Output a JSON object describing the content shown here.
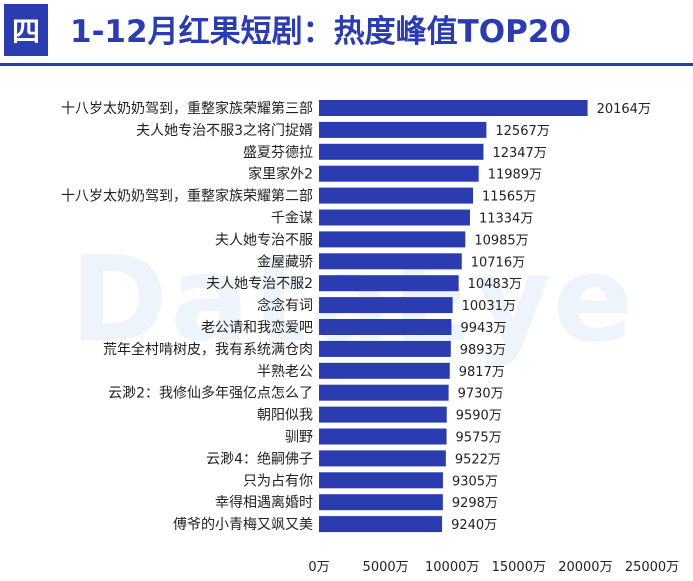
{
  "header": {
    "badge": "四",
    "title": "1-12月红果短剧：热度峰值TOP20"
  },
  "watermark": "DataEye",
  "colors": {
    "bar": "#2b3bb0",
    "accent": "#2b3bb0"
  },
  "chart_data": {
    "type": "bar",
    "orientation": "horizontal",
    "title": "1-12月红果短剧：热度峰值TOP20",
    "categories": [
      "十八岁太奶奶驾到，重整家族荣耀第三部",
      "夫人她专治不服3之将门捉婿",
      "盛夏芬德拉",
      "家里家外2",
      "十八岁太奶奶驾到，重整家族荣耀第二部",
      "千金谋",
      "夫人她专治不服",
      "金屋藏骄",
      "夫人她专治不服2",
      "念念有词",
      "老公请和我恋爱吧",
      "荒年全村啃树皮，我有系统满仓肉",
      "半熟老公",
      "云渺2：我修仙多年强亿点怎么了",
      "朝阳似我",
      "驯野",
      "云渺4：绝嗣佛子",
      "只为占有你",
      "幸得相遇离婚时",
      "傅爷的小青梅又飒又美"
    ],
    "values": [
      20164,
      12567,
      12347,
      11989,
      11565,
      11334,
      10985,
      10716,
      10483,
      10031,
      9943,
      9893,
      9817,
      9730,
      9590,
      9575,
      9522,
      9305,
      9298,
      9240
    ],
    "value_labels": [
      "20164万",
      "12567万",
      "12347万",
      "11989万",
      "11565万",
      "11334万",
      "10985万",
      "10716万",
      "10483万",
      "10031万",
      "9943万",
      "9893万",
      "9817万",
      "9730万",
      "9590万",
      "9575万",
      "9522万",
      "9305万",
      "9298万",
      "9240万"
    ],
    "x_ticks": [
      "0万",
      "5000万",
      "10000万",
      "15000万",
      "20000万",
      "25000万"
    ],
    "x_tick_values": [
      0,
      5000,
      10000,
      15000,
      20000,
      25000
    ],
    "xlim": [
      0,
      25000
    ],
    "grid": false
  }
}
